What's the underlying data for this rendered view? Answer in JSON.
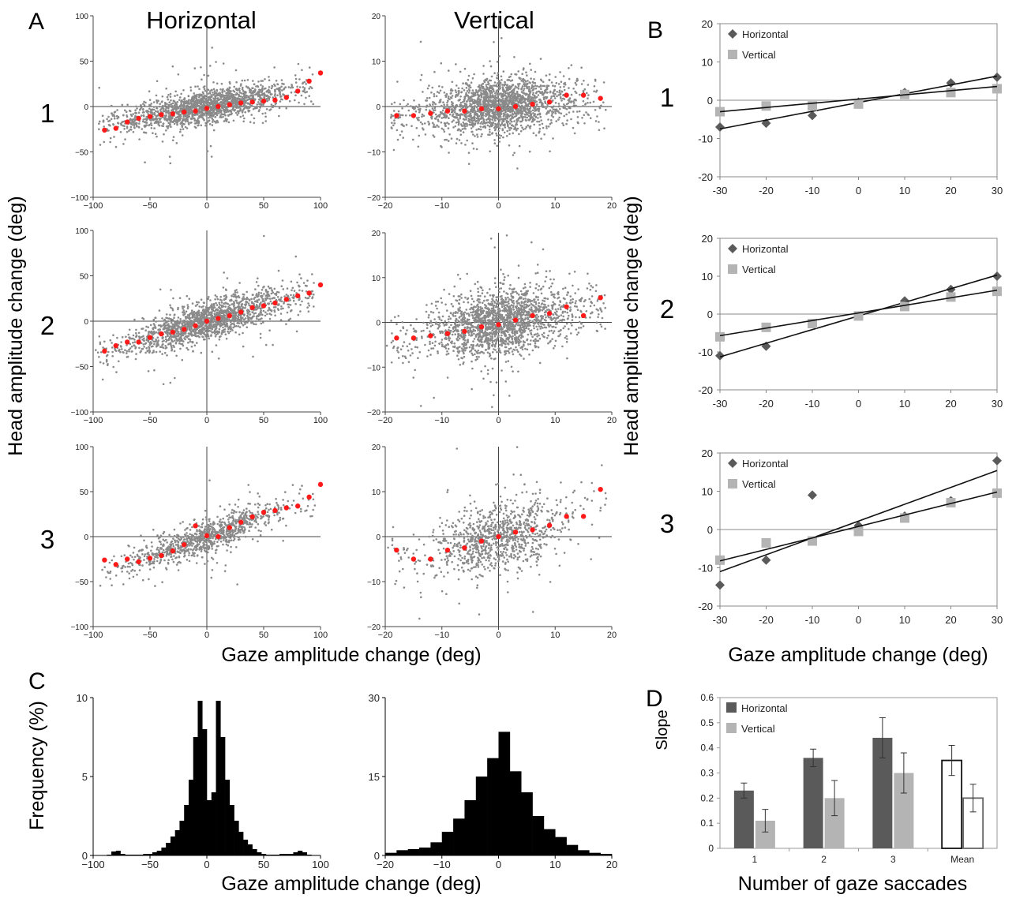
{
  "figure": {
    "panel_letters": [
      "A",
      "B",
      "C",
      "D"
    ],
    "column_titles": [
      "Horizontal",
      "Vertical"
    ],
    "row_labels": [
      "1",
      "2",
      "3"
    ],
    "ylabel_A": "Head amplitude change (deg)",
    "ylabel_B": "Head amplitude change (deg)",
    "xlabel_A": "Gaze amplitude change (deg)",
    "xlabel_B": "Gaze amplitude change (deg)",
    "ylabel_C": "Frequency (%)",
    "xlabel_C": "Gaze amplitude change (deg)",
    "ylabel_D": "Slope",
    "xlabel_D": "Number of gaze saccades"
  },
  "colors": {
    "scatter": "#8a8a8a",
    "bin_mean": "#ff1a1a",
    "horizontal": "#5a5a5a",
    "vertical": "#b4b4b4",
    "hist": "#000000"
  },
  "chart_data": [
    {
      "id": "A1-horizontal",
      "type": "scatter",
      "xlim": [
        -100,
        100
      ],
      "ylim": [
        -100,
        100
      ],
      "xticks": [
        -100,
        -50,
        0,
        50,
        100
      ],
      "yticks": [
        -100,
        -50,
        0,
        50,
        100
      ],
      "tick_labels_x": [
        "−100",
        "−50",
        "0",
        "50",
        "100"
      ],
      "tick_labels_y": [
        "−100",
        "−50",
        "0",
        "50",
        "100"
      ],
      "slope": 0.23,
      "spread": 9,
      "n": 1700,
      "bin_means": {
        "x": [
          -90,
          -80,
          -70,
          -60,
          -50,
          -40,
          -30,
          -20,
          -10,
          0,
          10,
          20,
          30,
          40,
          50,
          60,
          70,
          80,
          90,
          100
        ],
        "y": [
          -26,
          -24,
          -17,
          -13,
          -11,
          -9,
          -8,
          -6,
          -5,
          -2,
          0,
          2,
          4,
          5,
          6,
          7,
          10,
          17,
          28,
          37
        ]
      }
    },
    {
      "id": "A1-vertical",
      "type": "scatter",
      "xlim": [
        -20,
        20
      ],
      "ylim": [
        -20,
        20
      ],
      "xticks": [
        -20,
        -10,
        0,
        10,
        20
      ],
      "yticks": [
        -20,
        -10,
        0,
        10,
        20
      ],
      "tick_labels_x": [
        "−20",
        "−10",
        "0",
        "10",
        "20"
      ],
      "tick_labels_y": [
        "−20",
        "−10",
        "0",
        "10",
        "20"
      ],
      "slope": 0.11,
      "spread": 3,
      "n": 2000,
      "bin_means": {
        "x": [
          -18,
          -15,
          -12,
          -9,
          -6,
          -3,
          0,
          3,
          6,
          9,
          12,
          15,
          18
        ],
        "y": [
          -2,
          -2,
          -1.5,
          -1,
          -1,
          -0.5,
          -0.5,
          0,
          0.5,
          1,
          2.5,
          2.5,
          1.8
        ]
      }
    },
    {
      "id": "A2-horizontal",
      "type": "scatter",
      "xlim": [
        -100,
        100
      ],
      "ylim": [
        -100,
        100
      ],
      "xticks": [
        -100,
        -50,
        0,
        50,
        100
      ],
      "yticks": [
        -100,
        -50,
        0,
        50,
        100
      ],
      "tick_labels_x": [
        "−100",
        "−50",
        "0",
        "50",
        "100"
      ],
      "tick_labels_y": [
        "−100",
        "−50",
        "0",
        "50",
        "100"
      ],
      "slope": 0.36,
      "spread": 10,
      "n": 1700,
      "bin_means": {
        "x": [
          -90,
          -80,
          -70,
          -60,
          -50,
          -40,
          -30,
          -20,
          -10,
          0,
          10,
          20,
          30,
          40,
          50,
          60,
          70,
          80,
          90,
          100
        ],
        "y": [
          -33,
          -27,
          -23,
          -23,
          -18,
          -14,
          -12,
          -9,
          -5,
          0,
          3,
          6,
          10,
          15,
          17,
          20,
          24,
          28,
          31,
          40
        ]
      }
    },
    {
      "id": "A2-vertical",
      "type": "scatter",
      "xlim": [
        -20,
        20
      ],
      "ylim": [
        -20,
        20
      ],
      "xticks": [
        -20,
        -10,
        0,
        10,
        20
      ],
      "yticks": [
        -20,
        -10,
        0,
        10,
        20
      ],
      "tick_labels_x": [
        "−20",
        "−10",
        "0",
        "10",
        "20"
      ],
      "tick_labels_y": [
        "−20",
        "−10",
        "0",
        "10",
        "20"
      ],
      "slope": 0.2,
      "spread": 3.5,
      "n": 1900,
      "bin_means": {
        "x": [
          -18,
          -15,
          -12,
          -9,
          -6,
          -3,
          0,
          3,
          6,
          9,
          12,
          15,
          18
        ],
        "y": [
          -3.5,
          -3.5,
          -3,
          -2.5,
          -2,
          -1,
          -0.5,
          0.5,
          1.5,
          2,
          3.5,
          1.5,
          5.5
        ]
      }
    },
    {
      "id": "A3-horizontal",
      "type": "scatter",
      "xlim": [
        -100,
        100
      ],
      "ylim": [
        -100,
        100
      ],
      "xticks": [
        -100,
        -50,
        0,
        50,
        100
      ],
      "yticks": [
        -100,
        -50,
        0,
        50,
        100
      ],
      "tick_labels_x": [
        "−100",
        "−50",
        "0",
        "50",
        "100"
      ],
      "tick_labels_y": [
        "−100",
        "−50",
        "0",
        "50",
        "100"
      ],
      "slope": 0.44,
      "spread": 9,
      "n": 1000,
      "bin_means": {
        "x": [
          -90,
          -80,
          -70,
          -60,
          -50,
          -40,
          -30,
          -20,
          -10,
          0,
          10,
          20,
          30,
          40,
          50,
          60,
          70,
          80,
          90,
          100
        ],
        "y": [
          -26,
          -31,
          -25,
          -28,
          -24,
          -21,
          -16,
          -9,
          12,
          1,
          0,
          10,
          16,
          22,
          27,
          29,
          32,
          34,
          44,
          58
        ]
      }
    },
    {
      "id": "A3-vertical",
      "type": "scatter",
      "xlim": [
        -20,
        20
      ],
      "ylim": [
        -20,
        20
      ],
      "xticks": [
        -20,
        -10,
        0,
        10,
        20
      ],
      "yticks": [
        -20,
        -10,
        0,
        10,
        20
      ],
      "tick_labels_x": [
        "−20",
        "−10",
        "0",
        "10",
        "20"
      ],
      "tick_labels_y": [
        "−20",
        "−10",
        "0",
        "10",
        "20"
      ],
      "slope": 0.3,
      "spread": 3.8,
      "n": 1000,
      "bin_means": {
        "x": [
          -18,
          -15,
          -12,
          -9,
          -6,
          -3,
          0,
          3,
          6,
          9,
          12,
          15,
          18
        ],
        "y": [
          -3,
          -5,
          -5,
          -3,
          -2.5,
          -1,
          0,
          1,
          1.5,
          2.5,
          4.5,
          4.5,
          10.5
        ]
      }
    },
    {
      "id": "B1",
      "type": "scatter",
      "xlim": [
        -30,
        30
      ],
      "ylim": [
        -20,
        20
      ],
      "xticks": [
        -30,
        -20,
        -10,
        0,
        10,
        20,
        30
      ],
      "yticks": [
        -20,
        -10,
        0,
        10,
        20
      ],
      "legend_position": "top-left",
      "series": [
        {
          "name": "Horizontal",
          "marker": "diamond",
          "x": [
            -30,
            -20,
            -10,
            0,
            10,
            20,
            30
          ],
          "y": [
            -7,
            -6,
            -4,
            -0.5,
            2,
            4.5,
            6
          ],
          "fit": {
            "slope": 0.23,
            "intercept": -0.6
          }
        },
        {
          "name": "Vertical",
          "marker": "square",
          "x": [
            -30,
            -20,
            -10,
            0,
            10,
            20,
            30
          ],
          "y": [
            -3,
            -1.5,
            -1.5,
            -1,
            1.5,
            2,
            3
          ],
          "fit": {
            "slope": 0.11,
            "intercept": 0.3
          }
        }
      ]
    },
    {
      "id": "B2",
      "type": "scatter",
      "xlim": [
        -30,
        30
      ],
      "ylim": [
        -20,
        20
      ],
      "xticks": [
        -30,
        -20,
        -10,
        0,
        10,
        20,
        30
      ],
      "yticks": [
        -20,
        -10,
        0,
        10,
        20
      ],
      "legend_position": "top-left",
      "series": [
        {
          "name": "Horizontal",
          "marker": "diamond",
          "x": [
            -30,
            -20,
            -10,
            0,
            10,
            20,
            30
          ],
          "y": [
            -11,
            -8.5,
            -2.5,
            -0.5,
            3.5,
            6.5,
            10
          ],
          "fit": {
            "slope": 0.36,
            "intercept": -0.5
          }
        },
        {
          "name": "Vertical",
          "marker": "square",
          "x": [
            -30,
            -20,
            -10,
            0,
            10,
            20,
            30
          ],
          "y": [
            -6,
            -3.5,
            -2.5,
            -0.5,
            2,
            4.5,
            6
          ],
          "fit": {
            "slope": 0.2,
            "intercept": 0.3
          }
        }
      ]
    },
    {
      "id": "B3",
      "type": "scatter",
      "xlim": [
        -30,
        30
      ],
      "ylim": [
        -20,
        20
      ],
      "xticks": [
        -30,
        -20,
        -10,
        0,
        10,
        20,
        30
      ],
      "yticks": [
        -20,
        -10,
        0,
        10,
        20
      ],
      "legend_position": "top-left",
      "series": [
        {
          "name": "Horizontal",
          "marker": "diamond",
          "x": [
            -30,
            -20,
            -10,
            0,
            10,
            20,
            30
          ],
          "y": [
            -14.5,
            -8,
            9,
            1,
            3.5,
            7.5,
            18
          ],
          "fit": {
            "slope": 0.44,
            "intercept": 2.2
          }
        },
        {
          "name": "Vertical",
          "marker": "square",
          "x": [
            -30,
            -20,
            -10,
            0,
            10,
            20,
            30
          ],
          "y": [
            -8,
            -3.5,
            -3,
            -0.5,
            3,
            7,
            9.5
          ],
          "fit": {
            "slope": 0.3,
            "intercept": 0.8
          }
        }
      ]
    },
    {
      "id": "C-horizontal",
      "type": "bar",
      "xlim": [
        -100,
        100
      ],
      "ylim": [
        0,
        10
      ],
      "xticks": [
        -100,
        -50,
        0,
        50,
        100
      ],
      "yticks": [
        0,
        5,
        10
      ],
      "tick_labels_x": [
        "−100",
        "−50",
        "0",
        "50",
        "100"
      ],
      "tick_labels_y": [
        "0",
        "5",
        "10"
      ],
      "bin_width": 4,
      "bin_start": [
        -100,
        -96,
        -92,
        -88,
        -84,
        -80,
        -76,
        -72,
        -68,
        -64,
        -60,
        -56,
        -52,
        -48,
        -44,
        -40,
        -36,
        -32,
        -28,
        -24,
        -20,
        -16,
        -12,
        -8,
        -4,
        0,
        4,
        8,
        12,
        16,
        20,
        24,
        28,
        32,
        36,
        40,
        44,
        48,
        52,
        56,
        60,
        64,
        68,
        72,
        76,
        80,
        84,
        88,
        92,
        96
      ],
      "values": [
        0,
        0,
        0,
        0.05,
        0.25,
        0.3,
        0.1,
        0.05,
        0.05,
        0.05,
        0.05,
        0.1,
        0.1,
        0.2,
        0.3,
        0.5,
        0.8,
        1.2,
        1.6,
        2.2,
        3.2,
        4.8,
        7.5,
        9.8,
        8,
        3.5,
        4,
        9.8,
        7.5,
        4.8,
        3.2,
        2.2,
        1.5,
        1,
        0.7,
        0.4,
        0.2,
        0.1,
        0.05,
        0.05,
        0.05,
        0.1,
        0.1,
        0.1,
        0.2,
        0.3,
        0.2,
        0.05,
        0,
        0
      ]
    },
    {
      "id": "C-vertical",
      "type": "bar",
      "xlim": [
        -20,
        20
      ],
      "ylim": [
        0,
        30
      ],
      "xticks": [
        -20,
        -10,
        0,
        10,
        20
      ],
      "yticks": [
        0,
        15,
        30
      ],
      "tick_labels_x": [
        "−20",
        "−10",
        "0",
        "10",
        "20"
      ],
      "tick_labels_y": [
        "0",
        "15",
        "30"
      ],
      "bin_width": 2,
      "bin_start": [
        -20,
        -18,
        -16,
        -14,
        -12,
        -10,
        -8,
        -6,
        -4,
        -2,
        0,
        2,
        4,
        6,
        8,
        10,
        12,
        14,
        16,
        18
      ],
      "values": [
        0.5,
        1,
        1.2,
        1.5,
        2.5,
        4.5,
        7,
        10.5,
        15,
        18.5,
        23.5,
        16,
        12,
        7.5,
        5,
        3.5,
        2,
        1,
        0.5,
        0.3
      ]
    },
    {
      "id": "D",
      "type": "bar",
      "ylim": [
        0,
        0.6
      ],
      "yticks": [
        0,
        0.1,
        0.2,
        0.3,
        0.4,
        0.5,
        0.6
      ],
      "tick_labels_y": [
        "0",
        "0.1",
        "0.2",
        "0.3",
        "0.4",
        "0.5",
        "0.6"
      ],
      "categories": [
        "1",
        "2",
        "3",
        "Mean"
      ],
      "legend_position": "top-left",
      "series": [
        {
          "name": "Horizontal",
          "values": [
            0.23,
            0.36,
            0.44,
            0.35
          ],
          "errors": [
            0.03,
            0.035,
            0.08,
            0.06
          ]
        },
        {
          "name": "Vertical",
          "values": [
            0.11,
            0.2,
            0.3,
            0.2
          ],
          "errors": [
            0.045,
            0.07,
            0.08,
            0.055
          ]
        }
      ],
      "mean_style": "open bars"
    }
  ]
}
